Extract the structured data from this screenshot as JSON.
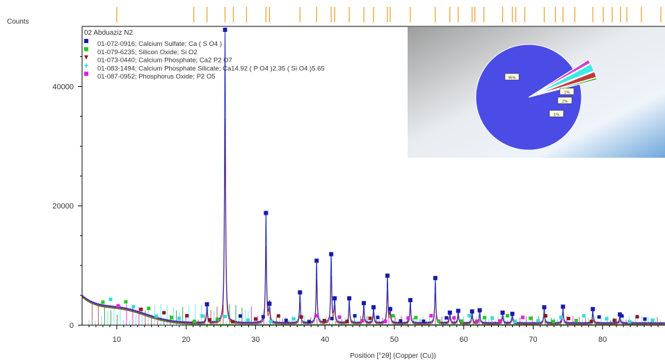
{
  "chart_data": {
    "type": "line",
    "y_axis_title": "Counts",
    "xlabel": "Position [°2θ] (Copper (Cu))",
    "xlim": [
      5,
      89
    ],
    "ylim": [
      0,
      51000
    ],
    "x_ticks": [
      10,
      20,
      30,
      40,
      50,
      60,
      70,
      80
    ],
    "x_tick_labels": [
      "10",
      "20",
      "30",
      "40",
      "50",
      "60",
      "70",
      "80"
    ],
    "y_ticks": [
      0,
      20000,
      40000
    ],
    "y_tick_labels": [
      "0",
      "20000",
      "40000"
    ],
    "sample_name": "02 Abduaziz N2",
    "colors": {
      "observed": "#1f2fbf",
      "calculated": "#c0392b",
      "background": "#2e8b2e",
      "peak_line": "#f0a030"
    },
    "legend": [
      {
        "label": "01-072-0916; Calcium Sulfate; Ca ( S O4 )",
        "color": "#1a1aa8",
        "symbol": "square"
      },
      {
        "label": "01-079-6235; Silicon Oxide; Si O2",
        "color": "#22cc22",
        "symbol": "square"
      },
      {
        "label": "01-073-0440; Calcium Phosphate; Ca2 P2 O7",
        "color": "#8b1a1a",
        "symbol": "triangle-down"
      },
      {
        "label": "01-083-1494; Calcium Phosphate Silicate; Ca14.92 ( P O4 )2.35 ( Si O4 )5.65",
        "color": "#33dddd",
        "symbol": "star"
      },
      {
        "label": "01-087-0952; Phosphorus Oxide; P2 O5",
        "color": "#e020e0",
        "symbol": "square"
      }
    ],
    "series": [
      {
        "name": "02 Abduaziz N2",
        "peaks": [
          [
            23.0,
            3500
          ],
          [
            25.6,
            49500
          ],
          [
            31.5,
            18800
          ],
          [
            32.0,
            3600
          ],
          [
            36.4,
            5500
          ],
          [
            38.8,
            10800
          ],
          [
            40.9,
            11900
          ],
          [
            41.4,
            4500
          ],
          [
            43.5,
            4500
          ],
          [
            45.6,
            3700
          ],
          [
            47.0,
            3000
          ],
          [
            49.0,
            8300
          ],
          [
            49.4,
            2700
          ],
          [
            52.3,
            4200
          ],
          [
            55.9,
            7900
          ],
          [
            58.0,
            2100
          ],
          [
            59.2,
            2400
          ],
          [
            61.2,
            2300
          ],
          [
            62.3,
            2500
          ],
          [
            65.6,
            2100
          ],
          [
            67.0,
            1900
          ],
          [
            71.6,
            3000
          ],
          [
            74.3,
            3100
          ],
          [
            78.6,
            2700
          ],
          [
            82.5,
            1800
          ]
        ]
      }
    ],
    "pie": {
      "slice_labels": [
        "95%",
        "1%",
        "2%",
        "1%"
      ],
      "colors": [
        "#4b4be6",
        "#d23bd2",
        "#40e8e8",
        "#c03a3a",
        "#2fb52f"
      ]
    },
    "reference_ticks_x": [
      10.0,
      21.1,
      23.0,
      25.6,
      26.8,
      28.7,
      31.5,
      32.0,
      36.4,
      38.8,
      40.9,
      41.4,
      43.5,
      45.6,
      47.0,
      49.0,
      49.4,
      52.3,
      55.9,
      58.0,
      59.2,
      61.2,
      61.6,
      62.9,
      65.6,
      67.0,
      67.5,
      68.8,
      71.6,
      73.2,
      74.3,
      76.0,
      78.6,
      80.1,
      81.4,
      82.6,
      83.5,
      85.6,
      88.4
    ]
  }
}
